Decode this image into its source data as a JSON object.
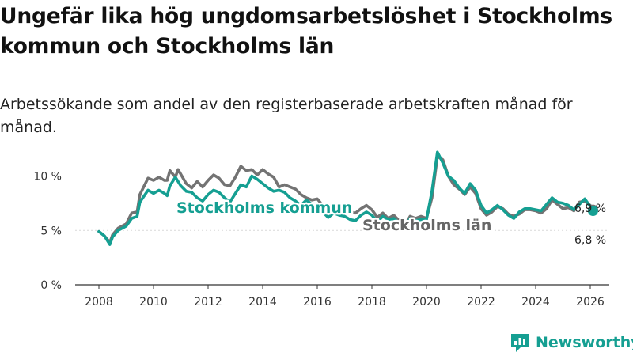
{
  "title": "Ungefär lika hög ungdomsarbetslöshet i Stockholms kommun och Stockholms län",
  "subtitle": "Arbetssökande som andel av den registerbaserade arbetskraften månad för månad.",
  "brand": {
    "name": "Newsworthy",
    "color": "#159f92",
    "icon": "bar-chart-logo-icon"
  },
  "chart_data": {
    "type": "line",
    "title": "Ungefär lika hög ungdomsarbetslöshet i Stockholms kommun och Stockholms län",
    "xlabel": "",
    "ylabel": "",
    "xlim": [
      2007.5,
      2026.9
    ],
    "ylim": [
      0,
      12
    ],
    "grid": true,
    "xticks": [
      2008,
      2010,
      2012,
      2014,
      2016,
      2018,
      2020,
      2022,
      2024,
      2026
    ],
    "xtick_labels": [
      "2008",
      "2010",
      "2012",
      "2014",
      "2016",
      "2018",
      "2020",
      "2022",
      "2024",
      "2026"
    ],
    "yticks": [
      0,
      5,
      10
    ],
    "ytick_labels": [
      "0 %",
      "5 %",
      "10 %"
    ],
    "series": [
      {
        "name": "Stockholms län",
        "color": "#737373",
        "label_value": "6,9 %",
        "points": [
          [
            2008.0,
            4.9
          ],
          [
            2008.2,
            4.5
          ],
          [
            2008.4,
            3.9
          ],
          [
            2008.5,
            4.6
          ],
          [
            2008.7,
            5.2
          ],
          [
            2009.0,
            5.6
          ],
          [
            2009.2,
            6.6
          ],
          [
            2009.4,
            6.7
          ],
          [
            2009.5,
            8.3
          ],
          [
            2009.8,
            9.8
          ],
          [
            2010.0,
            9.6
          ],
          [
            2010.2,
            9.9
          ],
          [
            2010.4,
            9.6
          ],
          [
            2010.5,
            9.6
          ],
          [
            2010.6,
            10.5
          ],
          [
            2010.8,
            9.9
          ],
          [
            2010.9,
            10.6
          ],
          [
            2011.2,
            9.3
          ],
          [
            2011.4,
            8.9
          ],
          [
            2011.6,
            9.5
          ],
          [
            2011.8,
            9.0
          ],
          [
            2012.0,
            9.6
          ],
          [
            2012.2,
            10.1
          ],
          [
            2012.4,
            9.8
          ],
          [
            2012.6,
            9.2
          ],
          [
            2012.8,
            9.1
          ],
          [
            2013.0,
            9.9
          ],
          [
            2013.2,
            10.9
          ],
          [
            2013.4,
            10.5
          ],
          [
            2013.6,
            10.6
          ],
          [
            2013.8,
            10.1
          ],
          [
            2014.0,
            10.6
          ],
          [
            2014.2,
            10.2
          ],
          [
            2014.4,
            9.9
          ],
          [
            2014.6,
            9.0
          ],
          [
            2014.8,
            9.2
          ],
          [
            2015.0,
            9.0
          ],
          [
            2015.2,
            8.8
          ],
          [
            2015.4,
            8.3
          ],
          [
            2015.6,
            8.0
          ],
          [
            2015.8,
            7.8
          ],
          [
            2016.0,
            7.9
          ],
          [
            2016.2,
            7.3
          ],
          [
            2016.4,
            7.2
          ],
          [
            2016.6,
            7.0
          ],
          [
            2016.8,
            7.4
          ],
          [
            2017.0,
            7.1
          ],
          [
            2017.2,
            6.7
          ],
          [
            2017.4,
            6.6
          ],
          [
            2017.6,
            7.0
          ],
          [
            2017.8,
            7.3
          ],
          [
            2018.0,
            6.9
          ],
          [
            2018.2,
            6.2
          ],
          [
            2018.4,
            6.6
          ],
          [
            2018.6,
            6.1
          ],
          [
            2018.8,
            6.4
          ],
          [
            2019.0,
            5.9
          ],
          [
            2019.2,
            5.4
          ],
          [
            2019.4,
            6.3
          ],
          [
            2019.6,
            6.1
          ],
          [
            2019.8,
            6.3
          ],
          [
            2020.0,
            6.1
          ],
          [
            2020.2,
            8.0
          ],
          [
            2020.4,
            11.8
          ],
          [
            2020.6,
            11.5
          ],
          [
            2020.8,
            10.0
          ],
          [
            2021.0,
            9.2
          ],
          [
            2021.2,
            8.8
          ],
          [
            2021.4,
            8.3
          ],
          [
            2021.6,
            9.0
          ],
          [
            2021.8,
            8.4
          ],
          [
            2022.0,
            7.0
          ],
          [
            2022.2,
            6.4
          ],
          [
            2022.4,
            6.7
          ],
          [
            2022.6,
            7.2
          ],
          [
            2022.8,
            7.0
          ],
          [
            2023.0,
            6.5
          ],
          [
            2023.2,
            6.3
          ],
          [
            2023.4,
            6.5
          ],
          [
            2023.6,
            6.9
          ],
          [
            2023.8,
            6.9
          ],
          [
            2024.0,
            6.8
          ],
          [
            2024.2,
            6.6
          ],
          [
            2024.4,
            7.0
          ],
          [
            2024.6,
            7.8
          ],
          [
            2024.8,
            7.4
          ],
          [
            2025.0,
            7.0
          ],
          [
            2025.2,
            7.1
          ],
          [
            2025.4,
            6.8
          ],
          [
            2025.6,
            7.6
          ],
          [
            2025.8,
            7.7
          ],
          [
            2026.0,
            7.3
          ],
          [
            2026.1,
            6.9
          ]
        ]
      },
      {
        "name": "Stockholms kommun",
        "color": "#159f92",
        "label_value": "6,8 %",
        "points": [
          [
            2008.0,
            4.9
          ],
          [
            2008.2,
            4.5
          ],
          [
            2008.4,
            3.7
          ],
          [
            2008.5,
            4.4
          ],
          [
            2008.7,
            5.0
          ],
          [
            2009.0,
            5.4
          ],
          [
            2009.2,
            6.1
          ],
          [
            2009.4,
            6.3
          ],
          [
            2009.5,
            7.6
          ],
          [
            2009.8,
            8.7
          ],
          [
            2010.0,
            8.4
          ],
          [
            2010.2,
            8.7
          ],
          [
            2010.4,
            8.4
          ],
          [
            2010.5,
            8.2
          ],
          [
            2010.6,
            9.1
          ],
          [
            2010.8,
            9.9
          ],
          [
            2011.0,
            9.1
          ],
          [
            2011.2,
            8.6
          ],
          [
            2011.4,
            8.5
          ],
          [
            2011.6,
            8.0
          ],
          [
            2011.8,
            7.7
          ],
          [
            2012.0,
            8.3
          ],
          [
            2012.2,
            8.7
          ],
          [
            2012.4,
            8.5
          ],
          [
            2012.6,
            8.0
          ],
          [
            2012.8,
            7.6
          ],
          [
            2013.0,
            8.4
          ],
          [
            2013.2,
            9.2
          ],
          [
            2013.4,
            9.0
          ],
          [
            2013.6,
            10.0
          ],
          [
            2013.8,
            9.7
          ],
          [
            2014.0,
            9.3
          ],
          [
            2014.2,
            8.9
          ],
          [
            2014.4,
            8.6
          ],
          [
            2014.6,
            8.7
          ],
          [
            2014.8,
            8.5
          ],
          [
            2015.0,
            8.0
          ],
          [
            2015.2,
            7.7
          ],
          [
            2015.4,
            7.3
          ],
          [
            2015.6,
            7.8
          ],
          [
            2015.8,
            7.4
          ],
          [
            2016.0,
            7.0
          ],
          [
            2016.2,
            6.7
          ],
          [
            2016.4,
            6.2
          ],
          [
            2016.6,
            6.6
          ],
          [
            2016.8,
            6.4
          ],
          [
            2017.0,
            6.3
          ],
          [
            2017.2,
            6.0
          ],
          [
            2017.4,
            5.9
          ],
          [
            2017.6,
            6.4
          ],
          [
            2017.8,
            6.7
          ],
          [
            2018.0,
            6.4
          ],
          [
            2018.2,
            5.8
          ],
          [
            2018.4,
            6.3
          ],
          [
            2018.6,
            6.0
          ],
          [
            2018.8,
            6.1
          ],
          [
            2019.0,
            5.7
          ],
          [
            2019.2,
            5.2
          ],
          [
            2019.4,
            6.1
          ],
          [
            2019.6,
            5.9
          ],
          [
            2019.8,
            6.0
          ],
          [
            2020.0,
            6.0
          ],
          [
            2020.2,
            8.6
          ],
          [
            2020.4,
            12.2
          ],
          [
            2020.6,
            11.2
          ],
          [
            2020.8,
            10.0
          ],
          [
            2021.0,
            9.6
          ],
          [
            2021.2,
            8.9
          ],
          [
            2021.4,
            8.4
          ],
          [
            2021.6,
            9.3
          ],
          [
            2021.8,
            8.7
          ],
          [
            2022.0,
            7.3
          ],
          [
            2022.2,
            6.6
          ],
          [
            2022.4,
            6.9
          ],
          [
            2022.6,
            7.3
          ],
          [
            2022.8,
            6.9
          ],
          [
            2023.0,
            6.4
          ],
          [
            2023.2,
            6.1
          ],
          [
            2023.4,
            6.7
          ],
          [
            2023.6,
            7.0
          ],
          [
            2023.8,
            7.0
          ],
          [
            2024.0,
            6.9
          ],
          [
            2024.2,
            6.8
          ],
          [
            2024.4,
            7.4
          ],
          [
            2024.6,
            8.0
          ],
          [
            2024.8,
            7.6
          ],
          [
            2025.0,
            7.5
          ],
          [
            2025.2,
            7.3
          ],
          [
            2025.4,
            6.9
          ],
          [
            2025.6,
            7.4
          ],
          [
            2025.8,
            7.9
          ],
          [
            2026.0,
            7.2
          ],
          [
            2026.1,
            6.8
          ]
        ]
      }
    ]
  }
}
